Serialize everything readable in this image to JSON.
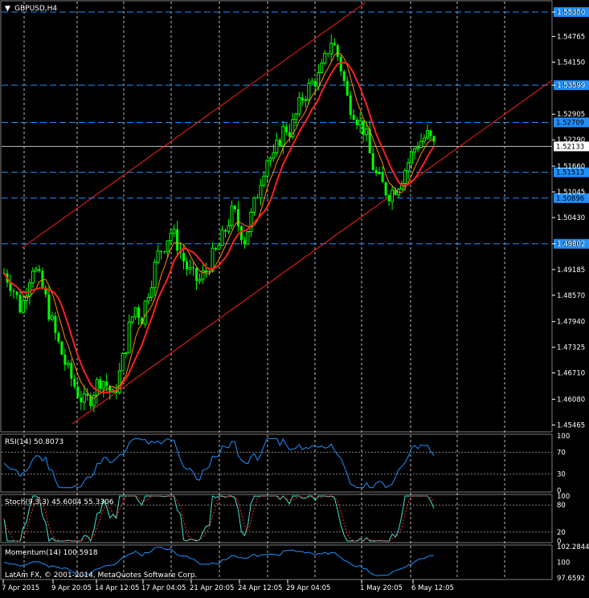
{
  "window": {
    "symbol_label": "GBPUSD,H4",
    "copyright": "LatAm FX, © 2001-2014, MetaQuotes Software Corp."
  },
  "colors": {
    "background": "#000000",
    "bull_candle": "#00ff00",
    "bear_candle": "#00ff00",
    "grid": "#ffffff",
    "hline": "#1e90ff",
    "hline_label_bg": "#1e90ff",
    "current_price_bg": "#ffffff",
    "ma_fast": "#ff2020",
    "ma_slow": "#ff8c00",
    "channel": "#ff2020",
    "rsi_line": "#1e90ff",
    "stoch_main": "#40e0d0",
    "stoch_signal": "#ff3030",
    "momentum_line": "#1e90ff"
  },
  "price_axis": {
    "ticks": [
      "1.55350",
      "1.54765",
      "1.54150",
      "1.53599",
      "1.52905",
      "1.52290",
      "1.51660",
      "1.51045",
      "1.50430",
      "1.49802",
      "1.49185",
      "1.48570",
      "1.47940",
      "1.47325",
      "1.46710",
      "1.46080",
      "1.45465"
    ],
    "highlighted_levels": [
      "1.55350",
      "1.53599",
      "1.52709",
      "1.51513",
      "1.50896",
      "1.49802"
    ],
    "current_price": "1.52133"
  },
  "time_axis": {
    "labels": [
      "7 Apr 2015",
      "9 Apr 20:05",
      "14 Apr 12:05",
      "17 Apr 04:05",
      "21 Apr 20:05",
      "24 Apr 12:05",
      "29 Apr 04:05",
      "1 May 20:05",
      "6 May 12:05"
    ]
  },
  "indicators": {
    "rsi": {
      "label": "RSI(14) 50.8073",
      "levels": [
        "100",
        "70",
        "30",
        "0"
      ]
    },
    "stoch": {
      "label": "Stoch(9,3,3) 45.6004 55.3306",
      "levels": [
        "100",
        "80",
        "20",
        "0"
      ]
    },
    "momentum": {
      "label": "Momentum(14) 100.5918",
      "levels": [
        "102.2844",
        "100",
        "97.6592"
      ]
    }
  },
  "chart_data": {
    "type": "candlestick",
    "series_note": "",
    "price_range": [
      1.453,
      1.556
    ],
    "close_path": [
      1.491,
      1.489,
      1.486,
      1.482,
      1.488,
      1.493,
      1.49,
      1.486,
      1.481,
      1.476,
      1.472,
      1.468,
      1.465,
      1.462,
      1.46,
      1.461,
      1.464,
      1.466,
      1.464,
      1.461,
      1.466,
      1.472,
      1.479,
      1.483,
      1.48,
      1.486,
      1.491,
      1.496,
      1.498,
      1.501,
      1.499,
      1.495,
      1.492,
      1.49,
      1.489,
      1.491,
      1.494,
      1.496,
      1.499,
      1.503,
      1.506,
      1.502,
      1.499,
      1.504,
      1.509,
      1.515,
      1.519,
      1.518,
      1.523,
      1.526,
      1.525,
      1.529,
      1.533,
      1.535,
      1.537,
      1.538,
      1.542,
      1.547,
      1.544,
      1.539,
      1.532,
      1.53,
      1.527,
      1.525,
      1.518,
      1.514,
      1.512,
      1.51,
      1.511,
      1.513,
      1.516,
      1.519,
      1.522,
      1.523,
      1.524,
      1.5213
    ]
  }
}
